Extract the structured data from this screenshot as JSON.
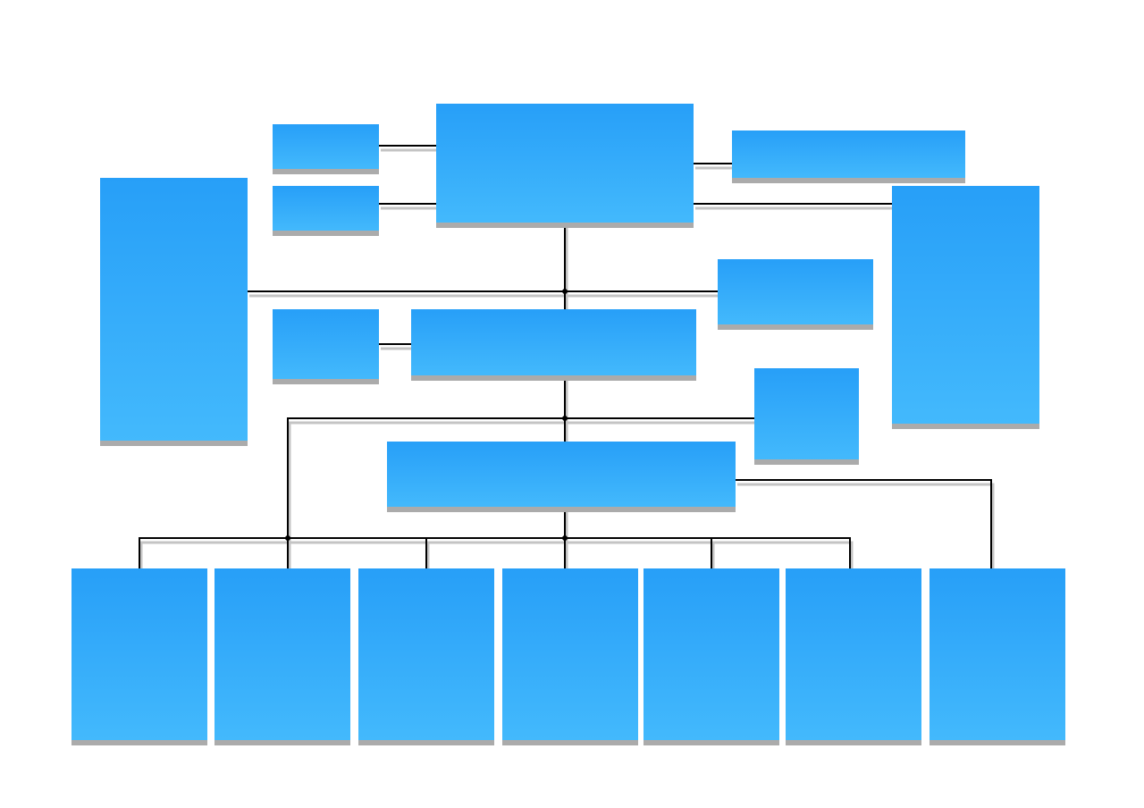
{
  "diagram": {
    "type": "org-chart",
    "colors": {
      "box_top": "#279ff8",
      "box_bottom": "#43b9fc",
      "box_shadow": "#ababab",
      "connector": "#000000",
      "connector_shadow": "#c4c4c4",
      "background": "#ffffff"
    }
  }
}
